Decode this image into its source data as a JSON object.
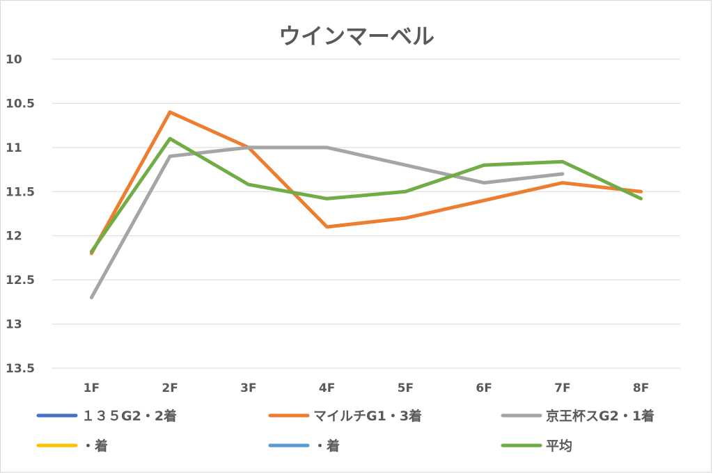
{
  "chart_data": {
    "type": "line",
    "title": "ウインマーベル",
    "categories": [
      "1F",
      "2F",
      "3F",
      "4F",
      "5F",
      "6F",
      "7F",
      "8F"
    ],
    "y_reversed": true,
    "ylim": [
      10,
      13.5
    ],
    "yticks": [
      10,
      10.5,
      11,
      11.5,
      12,
      12.5,
      13,
      13.5
    ],
    "ytick_labels": [
      "10",
      "10.5",
      "11",
      "11.5",
      "12",
      "12.5",
      "13",
      "13.5"
    ],
    "grid": true,
    "legend_position": "bottom",
    "series": [
      {
        "name": "１３５G2・2着",
        "color": "#4472c4",
        "values": [
          null,
          null,
          null,
          null,
          null,
          null,
          null,
          null
        ]
      },
      {
        "name": "マイルチG1・3着",
        "color": "#ed7d31",
        "values": [
          12.2,
          10.6,
          11.0,
          11.9,
          11.8,
          11.6,
          11.4,
          11.5
        ]
      },
      {
        "name": "京王杯スG2・1着",
        "color": "#a5a5a5",
        "values": [
          12.7,
          11.1,
          11.0,
          11.0,
          11.2,
          11.4,
          11.3,
          null
        ]
      },
      {
        "name": "・着",
        "color": "#ffc000",
        "values": [
          null,
          null,
          null,
          null,
          null,
          null,
          null,
          null
        ]
      },
      {
        "name": "・着",
        "color": "#5b9bd5",
        "values": [
          null,
          null,
          null,
          null,
          null,
          null,
          null,
          null
        ]
      },
      {
        "name": "平均",
        "color": "#70ad47",
        "values": [
          12.18,
          10.9,
          11.42,
          11.58,
          11.5,
          11.2,
          11.16,
          11.58
        ]
      }
    ]
  }
}
